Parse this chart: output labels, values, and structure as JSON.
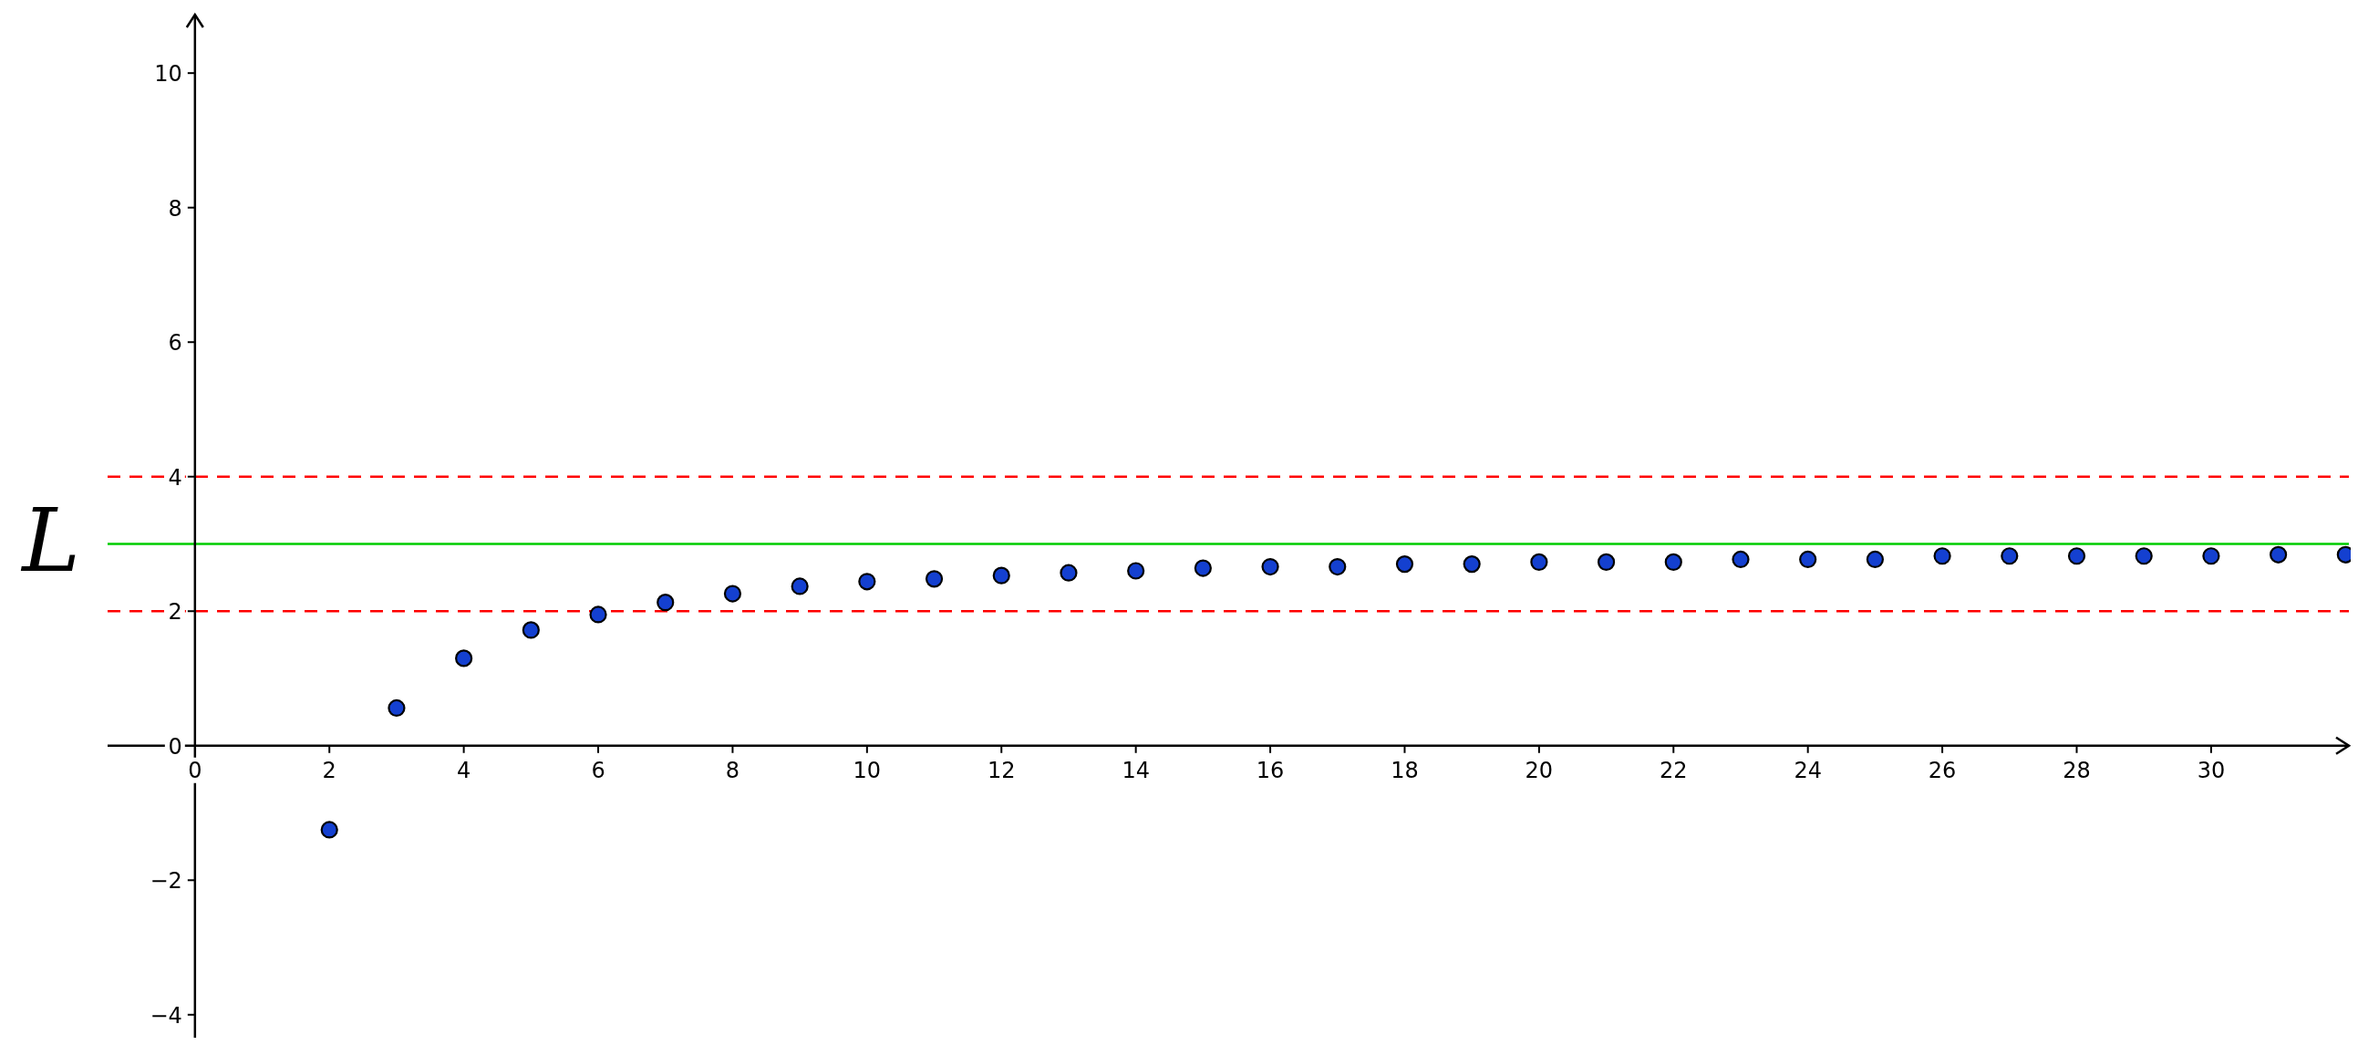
{
  "chart_data": {
    "type": "scatter",
    "ylabel": "L",
    "x": [
      2,
      3,
      4,
      5,
      6,
      7,
      8,
      9,
      10,
      11,
      12,
      13,
      14,
      15,
      16,
      17,
      18,
      19,
      20,
      21,
      22,
      23,
      24,
      25,
      26,
      27,
      28,
      29,
      30,
      31,
      32
    ],
    "series": [
      {
        "color": "#1440d0",
        "values": [
          -1.25,
          0.56,
          1.3,
          1.72,
          1.95,
          2.13,
          2.26,
          2.37,
          2.44,
          2.48,
          2.53,
          2.57,
          2.6,
          2.64,
          2.66,
          2.66,
          2.7,
          2.7,
          2.73,
          2.73,
          2.73,
          2.77,
          2.77,
          2.77,
          2.82,
          2.82,
          2.82,
          2.82,
          2.82,
          2.84,
          2.84
        ]
      }
    ],
    "marker": "circle",
    "xlim": [
      -1.3,
      32.05
    ],
    "ylim": [
      -4.45,
      10.87
    ],
    "xticks": [
      0,
      2,
      4,
      6,
      8,
      10,
      12,
      14,
      16,
      18,
      20,
      22,
      24,
      26,
      28,
      30
    ],
    "yticks": [
      -4,
      -2,
      0,
      2,
      4,
      6,
      8,
      10
    ],
    "ref_lines": [
      {
        "axis": "y",
        "value": 4,
        "color": "#ff0000",
        "line_style": "dashed"
      },
      {
        "axis": "y",
        "value": 3,
        "color": "#00cc00",
        "line_style": "solid"
      },
      {
        "axis": "y",
        "value": 2,
        "color": "#ff0000",
        "line_style": "dashed"
      }
    ],
    "grid": false
  }
}
